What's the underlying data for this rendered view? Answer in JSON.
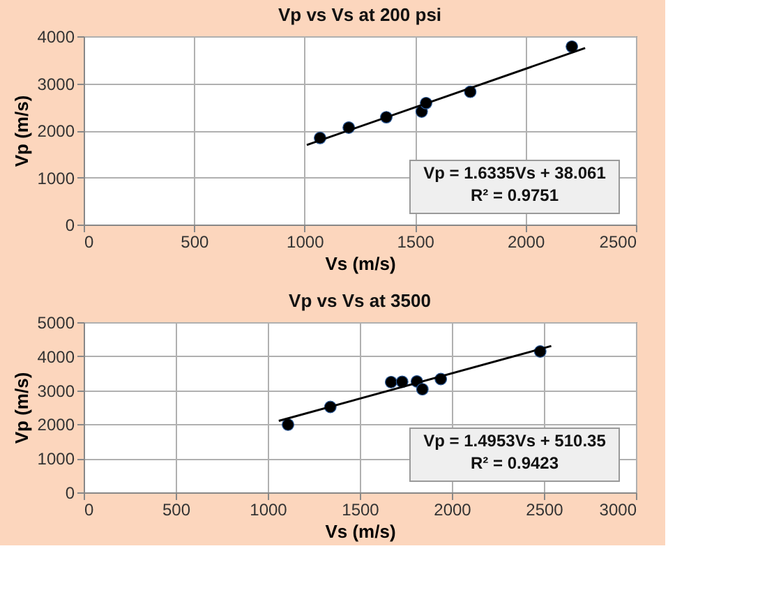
{
  "chart_data": [
    {
      "type": "scatter",
      "title": "Vp vs Vs at 200 psi",
      "xlabel": "Vs (m/s)",
      "ylabel": "Vp (m/s)",
      "xlim": [
        0,
        2500
      ],
      "xticks": [
        0,
        500,
        1000,
        1500,
        2000,
        2500
      ],
      "ylim": [
        0,
        4000
      ],
      "yticks": [
        0,
        1000,
        2000,
        3000,
        4000
      ],
      "grid": true,
      "series": [
        {
          "marker": "circle",
          "color": "#000000",
          "x": [
            1070,
            1200,
            1370,
            1530,
            1550,
            1750,
            2210
          ],
          "values": [
            1840,
            2060,
            2280,
            2400,
            2580,
            2820,
            3780
          ]
        },
        {
          "type": "line",
          "color": "#000000",
          "x": [
            1010,
            2270
          ],
          "values": [
            1690,
            3750
          ]
        }
      ],
      "annotations": [
        "Vp = 1.6335Vs + 38.061\nR² = 0.9751"
      ]
    },
    {
      "type": "scatter",
      "title": "Vp vs Vs at 3500",
      "xlabel": "Vs (m/s)",
      "ylabel": "Vp (m/s)",
      "xlim": [
        0,
        3000
      ],
      "xticks": [
        0,
        500,
        1000,
        1500,
        2000,
        2500,
        3000
      ],
      "ylim": [
        0,
        5000
      ],
      "yticks": [
        0,
        1000,
        2000,
        3000,
        4000,
        5000
      ],
      "grid": true,
      "series": [
        {
          "marker": "circle",
          "color": "#000000",
          "x": [
            1110,
            1340,
            1670,
            1730,
            1810,
            1840,
            1940,
            2480
          ],
          "values": [
            1990,
            2510,
            3240,
            3250,
            3260,
            3030,
            3330,
            4140
          ]
        },
        {
          "type": "line",
          "color": "#000000",
          "x": [
            1060,
            2540
          ],
          "values": [
            2100,
            4300
          ]
        }
      ],
      "annotations": [
        "Vp = 1.4953Vs + 510.35\nR² = 0.9423"
      ]
    }
  ]
}
